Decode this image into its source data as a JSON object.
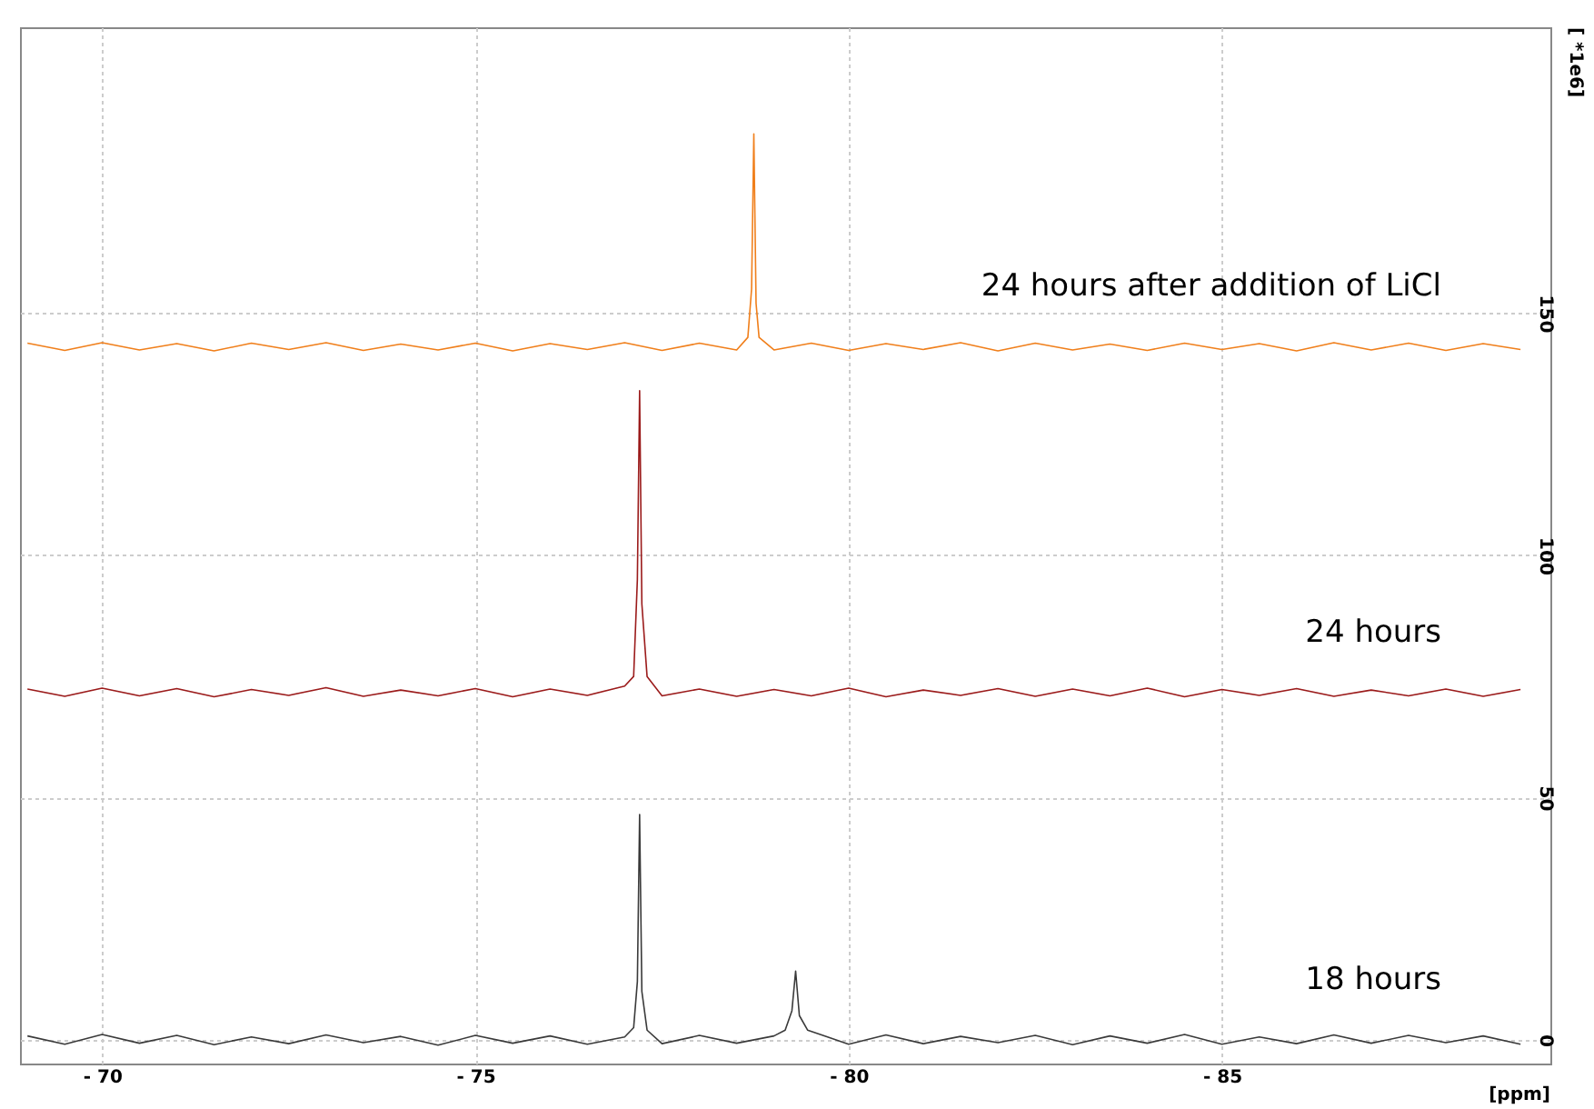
{
  "chart_data": {
    "type": "line",
    "xlabel": "[ppm]",
    "ylabel": "[ *1e6]",
    "xlim": [
      -68.9,
      -89.4
    ],
    "ylim": [
      -4.9,
      209
    ],
    "xticks": [
      {
        "value": -70,
        "label": "- 70"
      },
      {
        "value": -75,
        "label": "- 75"
      },
      {
        "value": -80,
        "label": "- 80"
      },
      {
        "value": -85,
        "label": "- 85"
      }
    ],
    "yticks": [
      0,
      50,
      100,
      150
    ],
    "grid": true,
    "line_style": "solid",
    "marker": "none",
    "series": [
      {
        "name": "18 hours",
        "color": "#3a3a3a",
        "x": [
          -69.0,
          -69.5,
          -70.0,
          -70.5,
          -71.0,
          -71.5,
          -72.0,
          -72.5,
          -73.0,
          -73.5,
          -74.0,
          -74.5,
          -75.0,
          -75.5,
          -76.0,
          -76.5,
          -77.0,
          -77.12,
          -77.17,
          -77.2,
          -77.23,
          -77.3,
          -77.5,
          -78.0,
          -78.5,
          -79.0,
          -79.15,
          -79.24,
          -79.29,
          -79.34,
          -79.45,
          -79.7,
          -80.0,
          -80.5,
          -81.0,
          -81.5,
          -82.0,
          -82.5,
          -83.0,
          -83.5,
          -84.0,
          -84.5,
          -85.0,
          -85.5,
          -86.0,
          -86.5,
          -87.0,
          -87.5,
          -88.0,
          -88.5,
          -89.0
        ],
        "values": [
          0.8,
          -0.9,
          1.1,
          -0.7,
          0.9,
          -1.0,
          0.6,
          -0.8,
          1.0,
          -0.6,
          0.7,
          -1.1,
          0.9,
          -0.7,
          0.8,
          -0.9,
          0.6,
          2.5,
          12,
          46.5,
          10,
          2,
          -0.8,
          0.9,
          -0.7,
          0.8,
          2,
          6,
          14.2,
          5,
          2,
          0.7,
          -0.9,
          1.0,
          -0.8,
          0.7,
          -0.6,
          0.9,
          -1.0,
          0.8,
          -0.7,
          1.1,
          -0.9,
          0.6,
          -0.8,
          1.0,
          -0.7,
          0.9,
          -0.6,
          0.8,
          -0.9
        ]
      },
      {
        "name": "24 hours",
        "color": "#9b1b1b",
        "x": [
          -69.0,
          -69.5,
          -70.0,
          -70.5,
          -71.0,
          -71.5,
          -72.0,
          -72.5,
          -73.0,
          -73.5,
          -74.0,
          -74.5,
          -75.0,
          -75.5,
          -76.0,
          -76.5,
          -77.0,
          -77.12,
          -77.17,
          -77.2,
          -77.23,
          -77.3,
          -77.5,
          -78.0,
          -78.5,
          -79.0,
          -79.5,
          -80.0,
          -80.5,
          -81.0,
          -81.5,
          -82.0,
          -82.5,
          -83.0,
          -83.5,
          -84.0,
          -84.5,
          -85.0,
          -85.5,
          -86.0,
          -86.5,
          -87.0,
          -87.5,
          -88.0,
          -88.5,
          -89.0
        ],
        "values": [
          72.4,
          70.9,
          72.6,
          71.0,
          72.5,
          70.8,
          72.3,
          71.1,
          72.7,
          70.9,
          72.2,
          71.0,
          72.5,
          70.8,
          72.4,
          71.1,
          73.0,
          75,
          95,
          134,
          90,
          75,
          71.0,
          72.4,
          70.9,
          72.3,
          71.0,
          72.6,
          70.8,
          72.2,
          71.1,
          72.5,
          70.9,
          72.4,
          71.0,
          72.6,
          70.8,
          72.3,
          71.1,
          72.5,
          70.9,
          72.2,
          71.0,
          72.4,
          70.9,
          72.3
        ]
      },
      {
        "name": "24 hours after addition of LiCl",
        "color": "#f07f1b",
        "x": [
          -69.0,
          -69.5,
          -70.0,
          -70.5,
          -71.0,
          -71.5,
          -72.0,
          -72.5,
          -73.0,
          -73.5,
          -74.0,
          -74.5,
          -75.0,
          -75.5,
          -76.0,
          -76.5,
          -77.0,
          -77.5,
          -78.0,
          -78.5,
          -78.65,
          -78.7,
          -78.73,
          -78.76,
          -78.8,
          -79.0,
          -79.5,
          -80.0,
          -80.5,
          -81.0,
          -81.5,
          -82.0,
          -82.5,
          -83.0,
          -83.5,
          -84.0,
          -84.5,
          -85.0,
          -85.5,
          -86.0,
          -86.5,
          -87.0,
          -87.5,
          -88.0,
          -88.5,
          -89.0
        ],
        "values": [
          143.8,
          142.3,
          143.9,
          142.4,
          143.7,
          142.2,
          143.8,
          142.5,
          143.9,
          142.3,
          143.6,
          142.4,
          143.8,
          142.2,
          143.7,
          142.5,
          143.9,
          142.3,
          143.8,
          142.4,
          145,
          155,
          187,
          152,
          145,
          142.4,
          143.8,
          142.3,
          143.7,
          142.5,
          143.9,
          142.2,
          143.8,
          142.4,
          143.6,
          142.3,
          143.8,
          142.5,
          143.7,
          142.2,
          143.9,
          142.4,
          143.8,
          142.3,
          143.7,
          142.5
        ]
      }
    ]
  }
}
